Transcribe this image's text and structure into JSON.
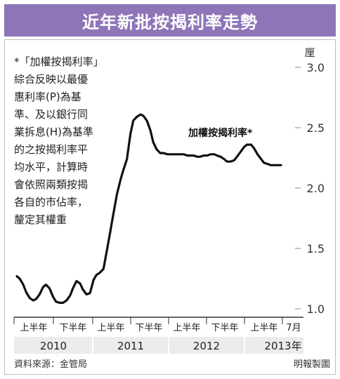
{
  "header": {
    "title": "近年新批按揭利率走勢"
  },
  "note_lines": [
    "*「加權按揭利率」",
    "綜合反映以最優",
    "惠利率(P)為基",
    "準、及以銀行同",
    "業拆息(H)為基準",
    "的之按揭利率平",
    "均水平，計算時",
    "會依照兩類按揭",
    "各自的市佔率，",
    "釐定其權重"
  ],
  "footer": {
    "source": "資料來源：金管局",
    "credit": "明報製圖"
  },
  "chart_data": {
    "type": "line",
    "title": "近年新批按揭利率走勢",
    "ylabel": "厘",
    "ylim": [
      1.0,
      3.0
    ],
    "yticks": [
      "1.0",
      "1.5",
      "2.0",
      "2.5",
      "3.0"
    ],
    "grid": false,
    "period_labels": [
      "上半年",
      "下半年",
      "上半年",
      "下半年",
      "上半年",
      "下半年",
      "上半年",
      "7月"
    ],
    "year_labels": [
      "2010",
      "2011",
      "2012",
      "2013年"
    ],
    "annotation": "加權按揭利率*",
    "series": [
      {
        "name": "加權按揭利率*",
        "x": [
          0,
          0.4,
          0.9,
          1.3,
          1.8,
          2.3,
          2.7,
          3.2,
          3.7,
          4.1,
          4.6,
          5.1,
          5.5,
          6.0,
          6.5,
          7.0,
          7.5,
          7.9,
          8.4,
          8.9,
          9.3,
          9.8,
          10.3,
          10.8,
          11.2,
          11.7,
          12.2,
          12.6,
          13.1,
          13.6,
          14.1,
          14.6,
          15.0,
          15.5,
          16.0,
          16.4,
          16.9,
          17.4,
          17.8,
          18.3,
          18.8,
          19.2,
          19.7,
          20.2,
          20.7,
          21.2,
          21.6,
          22.1,
          22.6,
          23.0,
          23.5,
          24.0,
          24.4,
          24.9,
          25.4,
          25.8,
          26.3,
          26.8,
          27.3,
          27.8,
          28.2,
          28.7,
          29.2,
          29.6,
          30.1,
          30.6,
          31.0,
          31.5,
          32.0,
          32.4,
          33.0,
          33.4,
          33.9,
          34.4,
          34.8,
          35.3,
          35.8,
          36.2,
          36.7,
          37.2
        ],
        "y": [
          1.27,
          1.25,
          1.2,
          1.14,
          1.09,
          1.07,
          1.08,
          1.12,
          1.18,
          1.2,
          1.17,
          1.1,
          1.06,
          1.05,
          1.05,
          1.07,
          1.11,
          1.17,
          1.23,
          1.21,
          1.16,
          1.12,
          1.13,
          1.24,
          1.28,
          1.3,
          1.33,
          1.46,
          1.62,
          1.79,
          1.95,
          2.07,
          2.15,
          2.24,
          2.45,
          2.56,
          2.59,
          2.61,
          2.6,
          2.56,
          2.48,
          2.38,
          2.32,
          2.29,
          2.29,
          2.28,
          2.28,
          2.28,
          2.28,
          2.28,
          2.28,
          2.27,
          2.27,
          2.27,
          2.26,
          2.26,
          2.27,
          2.27,
          2.28,
          2.28,
          2.27,
          2.26,
          2.24,
          2.22,
          2.22,
          2.23,
          2.26,
          2.3,
          2.34,
          2.36,
          2.36,
          2.33,
          2.28,
          2.24,
          2.21,
          2.2,
          2.19,
          2.19,
          2.19,
          2.19
        ]
      }
    ]
  }
}
